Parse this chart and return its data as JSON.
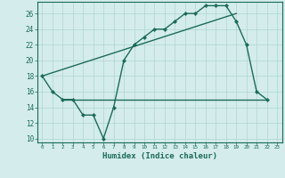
{
  "xlabel": "Humidex (Indice chaleur)",
  "bg_color": "#d4ecec",
  "grid_color": "#b0d4d4",
  "line_color": "#1a6b5a",
  "xlim": [
    -0.5,
    23.5
  ],
  "ylim": [
    9.5,
    27.5
  ],
  "xticks": [
    0,
    1,
    2,
    3,
    4,
    5,
    6,
    7,
    8,
    9,
    10,
    11,
    12,
    13,
    14,
    15,
    16,
    17,
    18,
    19,
    20,
    21,
    22,
    23
  ],
  "yticks": [
    10,
    12,
    14,
    16,
    18,
    20,
    22,
    24,
    26
  ],
  "line1_x": [
    0,
    1,
    2,
    3,
    4,
    5,
    6,
    7,
    8,
    9,
    10,
    11,
    12,
    13,
    14,
    15,
    16,
    17,
    18,
    19,
    20,
    21,
    22
  ],
  "line1_y": [
    18,
    16,
    15,
    15,
    13,
    13,
    10,
    14,
    20,
    22,
    23,
    24,
    24,
    25,
    26,
    26,
    27,
    27,
    27,
    25,
    22,
    16,
    15
  ],
  "line2_x": [
    2,
    22
  ],
  "line2_y": [
    15,
    15
  ],
  "line3_x": [
    0,
    19
  ],
  "line3_y": [
    18,
    26
  ]
}
